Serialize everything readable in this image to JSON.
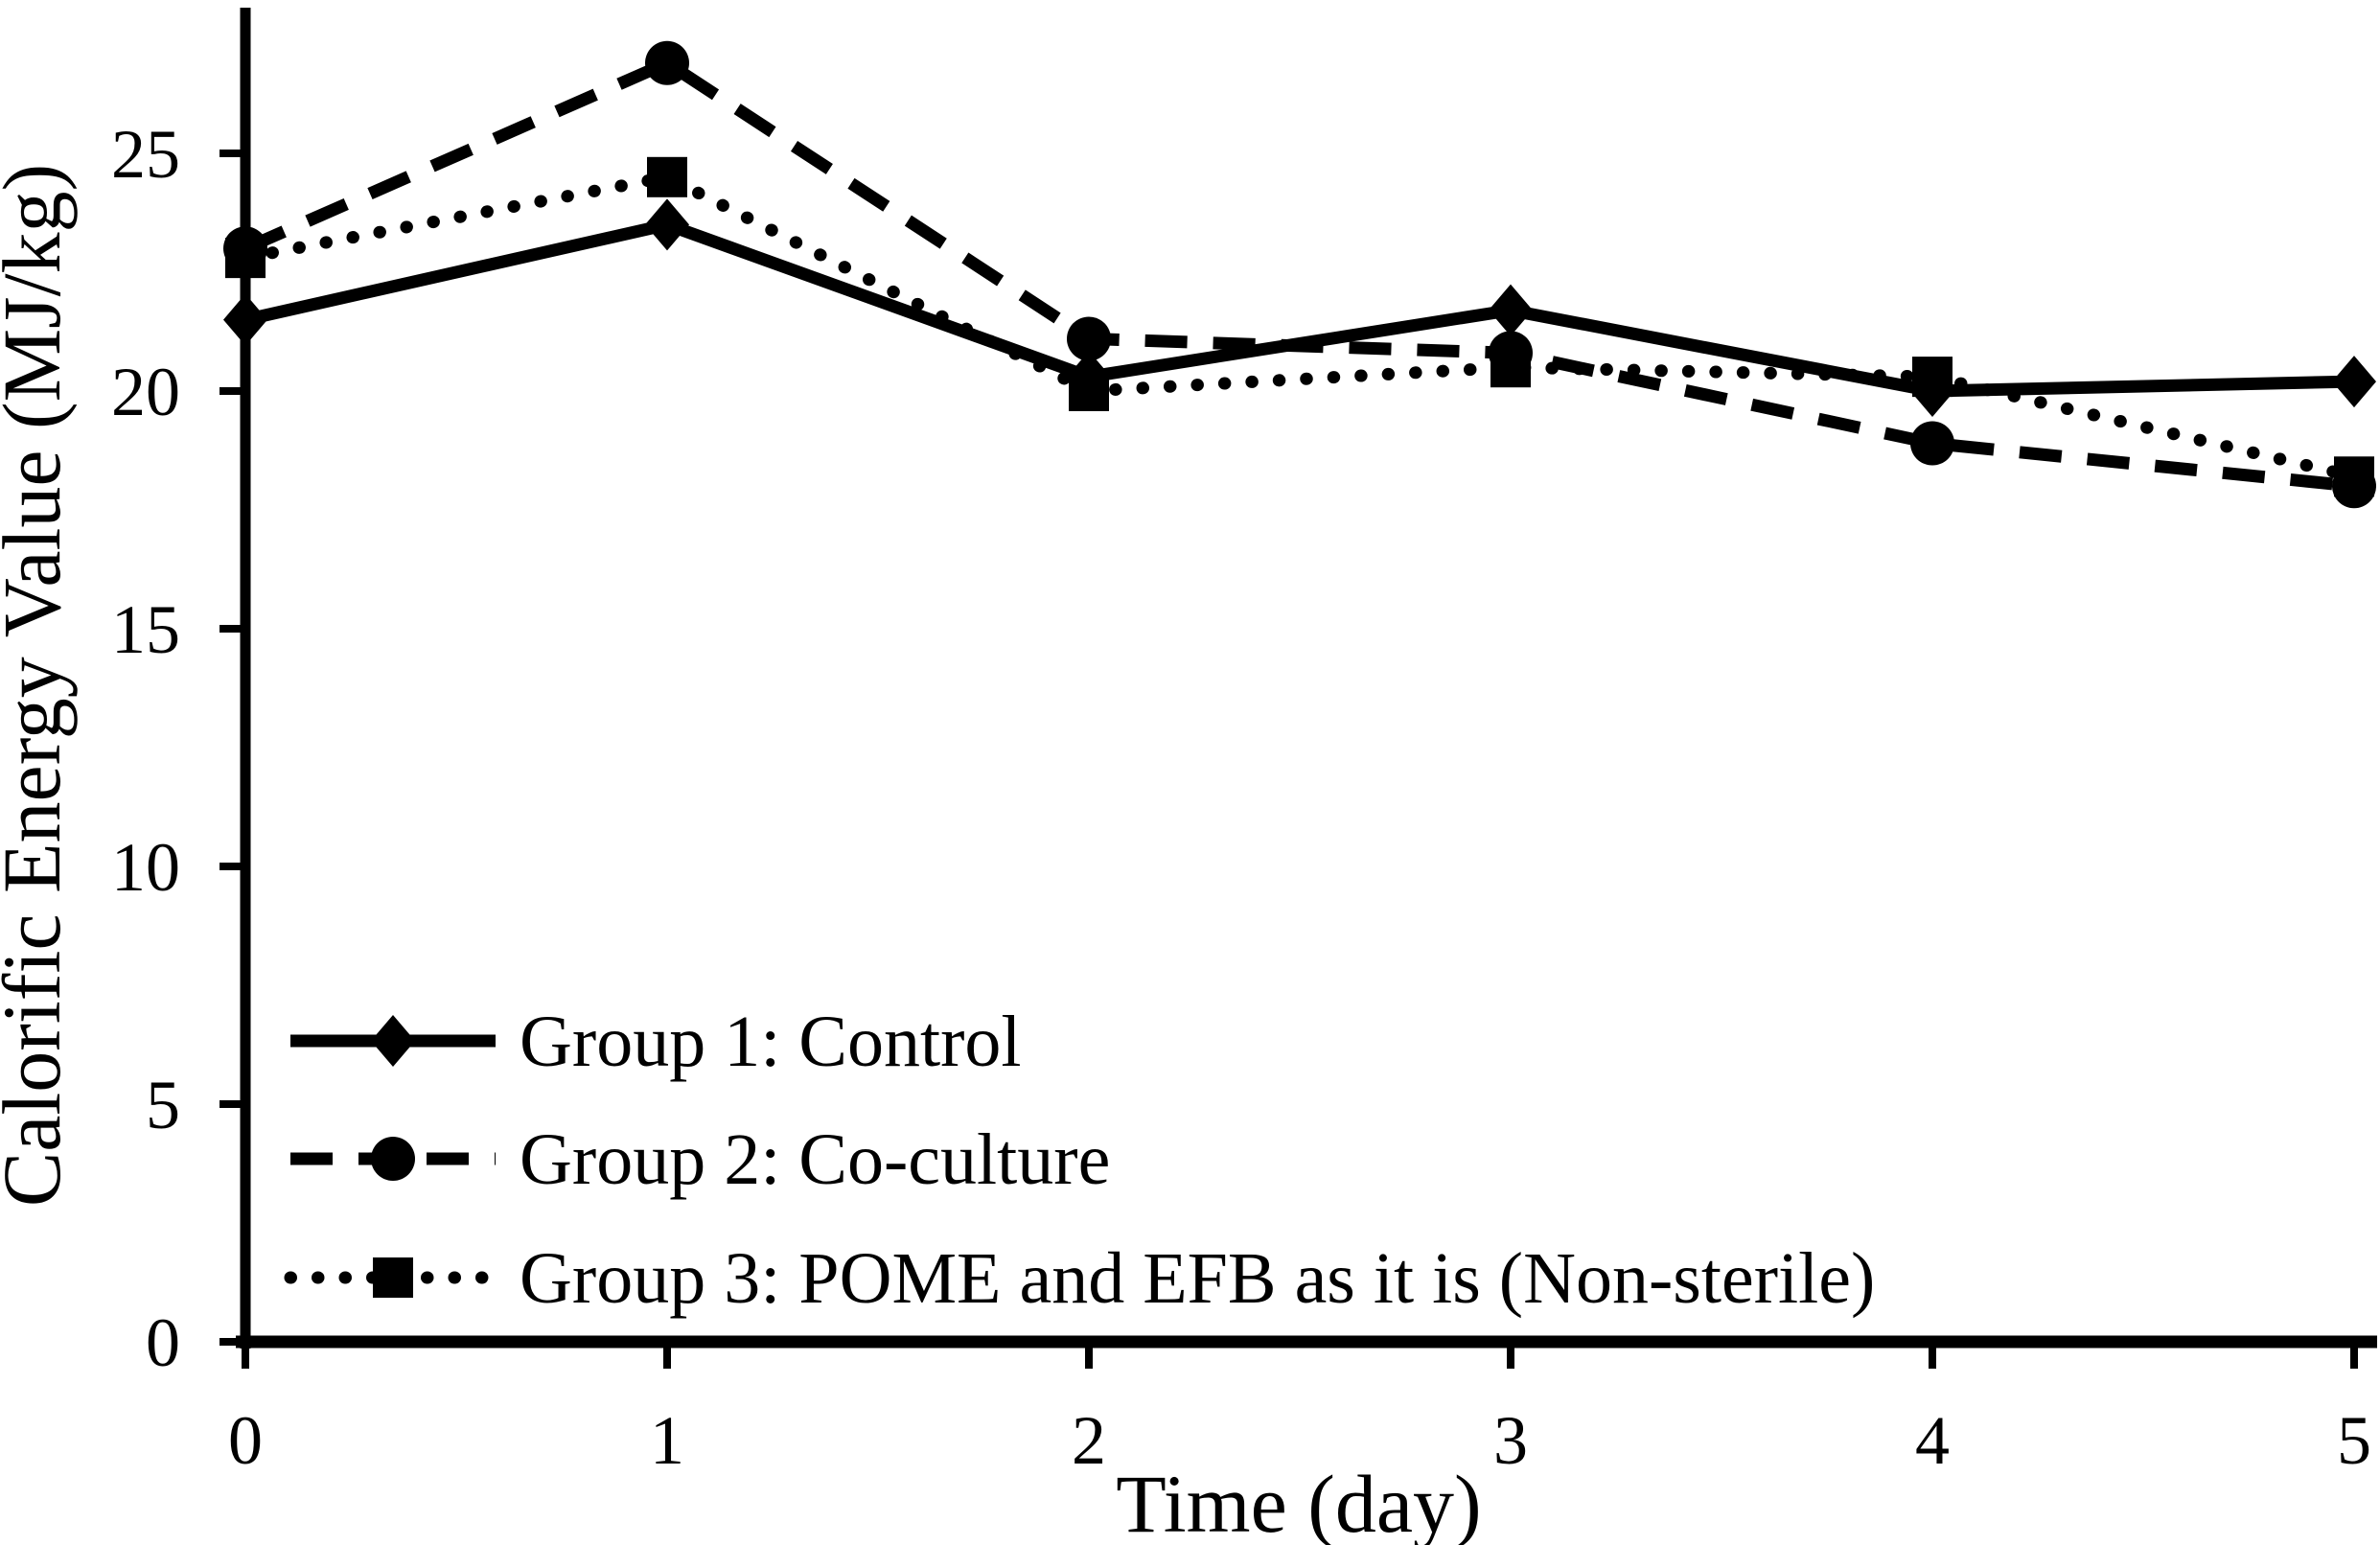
{
  "chart_data": {
    "type": "line",
    "title": "",
    "xlabel": "Time (day)",
    "ylabel": "Calorific Energy Value (MJ/kg)",
    "x": [
      0,
      1,
      2,
      3,
      4,
      5
    ],
    "x_tick_labels": [
      "0",
      "1",
      "2",
      "3",
      "4",
      "5"
    ],
    "y_ticks": [
      0,
      5,
      10,
      15,
      20,
      25
    ],
    "y_tick_labels": [
      "0",
      "5",
      "10",
      "15",
      "20",
      "25"
    ],
    "xlim": [
      0,
      5
    ],
    "ylim": [
      0,
      28
    ],
    "grid": false,
    "legend_position": "inside-bottom-left",
    "line_color": "#000000",
    "background_color": "#ffffff",
    "series": [
      {
        "name": "Group 1: Control",
        "marker": "diamond",
        "line_style": "solid",
        "values": [
          21.5,
          23.5,
          20.3,
          21.7,
          20.0,
          20.2
        ]
      },
      {
        "name": "Group 2: Co-culture",
        "marker": "circle",
        "line_style": "dashed",
        "values": [
          23.0,
          26.9,
          21.1,
          20.8,
          18.9,
          18.0
        ]
      },
      {
        "name": "Group 3: POME and EFB as it is (Non-sterile)",
        "marker": "square",
        "line_style": "dotted",
        "values": [
          22.8,
          24.5,
          20.0,
          20.5,
          20.3,
          18.2
        ]
      }
    ]
  }
}
